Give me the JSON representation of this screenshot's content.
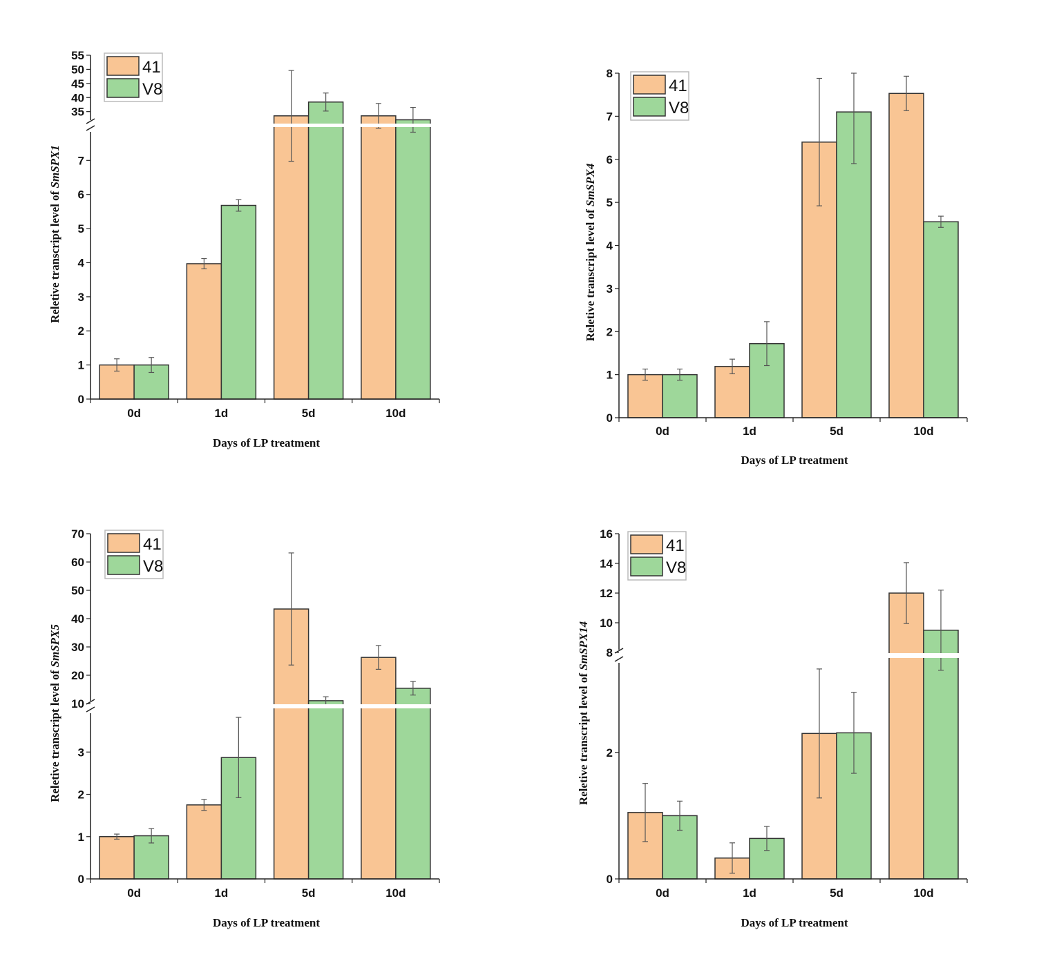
{
  "colors": {
    "s41": "#f9c594",
    "sV8": "#9ed79a",
    "edge": "#333333",
    "error": "#555555"
  },
  "chart_data": [
    {
      "type": "bar",
      "title": "",
      "ylabel_prefix": "Reletive transcript level of ",
      "gene": "SmSPX1",
      "xlabel": "Days of LP treatment",
      "categories": [
        "0d",
        "1d",
        "5d",
        "10d"
      ],
      "broken_axis": true,
      "lower_ticks": [
        "0",
        "1",
        "2",
        "3",
        "4",
        "5",
        "6",
        "7"
      ],
      "upper_ticks": [
        "35",
        "40",
        "45",
        "50",
        "55"
      ],
      "legend": [
        "41",
        "V8"
      ],
      "legend_position": "top-left",
      "series": [
        {
          "name": "41",
          "values": [
            1.0,
            3.97,
            33.5,
            33.5
          ],
          "errors": [
            0.18,
            0.15,
            16.1,
            4.4
          ]
        },
        {
          "name": "V8",
          "values": [
            1.0,
            5.68,
            38.4,
            32.1
          ],
          "errors": [
            0.22,
            0.17,
            3.2,
            4.4
          ]
        }
      ]
    },
    {
      "type": "bar",
      "title": "",
      "ylabel_prefix": "Reletive transcript level of ",
      "gene": "SmSPX4",
      "xlabel": "Days of LP treatment",
      "categories": [
        "0d",
        "1d",
        "5d",
        "10d"
      ],
      "broken_axis": false,
      "lower_ticks": [
        "0",
        "1",
        "2",
        "3",
        "4",
        "5",
        "6",
        "7",
        "8"
      ],
      "upper_ticks": [],
      "legend": [
        "41",
        "V8"
      ],
      "legend_position": "top-left",
      "ylim": [
        0,
        8
      ],
      "series": [
        {
          "name": "41",
          "values": [
            1.0,
            1.19,
            6.4,
            7.53
          ],
          "errors": [
            0.13,
            0.17,
            1.48,
            0.4
          ]
        },
        {
          "name": "V8",
          "values": [
            1.0,
            1.72,
            7.1,
            4.55
          ],
          "errors": [
            0.13,
            0.51,
            1.2,
            0.13
          ]
        }
      ]
    },
    {
      "type": "bar",
      "title": "",
      "ylabel_prefix": "Reletive transcript level of ",
      "gene": "SmSPX5",
      "xlabel": "Days of LP treatment",
      "categories": [
        "0d",
        "1d",
        "5d",
        "10d"
      ],
      "broken_axis": true,
      "lower_ticks": [
        "0",
        "1",
        "2",
        "3"
      ],
      "upper_ticks": [
        "10",
        "20",
        "30",
        "40",
        "50",
        "60",
        "70"
      ],
      "legend": [
        "41",
        "V8"
      ],
      "legend_position": "top-left",
      "series": [
        {
          "name": "41",
          "values": [
            1.0,
            1.75,
            43.4,
            26.3
          ],
          "errors": [
            0.06,
            0.13,
            19.8,
            4.2
          ]
        },
        {
          "name": "V8",
          "values": [
            1.02,
            2.87,
            11.0,
            15.4
          ],
          "errors": [
            0.17,
            0.95,
            1.4,
            2.4
          ]
        }
      ]
    },
    {
      "type": "bar",
      "title": "",
      "ylabel_prefix": "Reletive transcript level of ",
      "gene": "SmSPX14",
      "xlabel": "Days of LP treatment",
      "categories": [
        "0d",
        "1d",
        "5d",
        "10d"
      ],
      "broken_axis": true,
      "lower_ticks": [
        "0",
        "2"
      ],
      "upper_ticks": [
        "8",
        "10",
        "12",
        "14",
        "16"
      ],
      "legend": [
        "41",
        "V8"
      ],
      "legend_position": "top-left",
      "series": [
        {
          "name": "41",
          "values": [
            1.05,
            0.33,
            2.3,
            12.0
          ],
          "errors": [
            0.46,
            0.24,
            1.02,
            2.05
          ]
        },
        {
          "name": "V8",
          "values": [
            1.0,
            0.64,
            2.31,
            9.5
          ],
          "errors": [
            0.23,
            0.19,
            0.64,
            2.7
          ]
        }
      ]
    }
  ]
}
